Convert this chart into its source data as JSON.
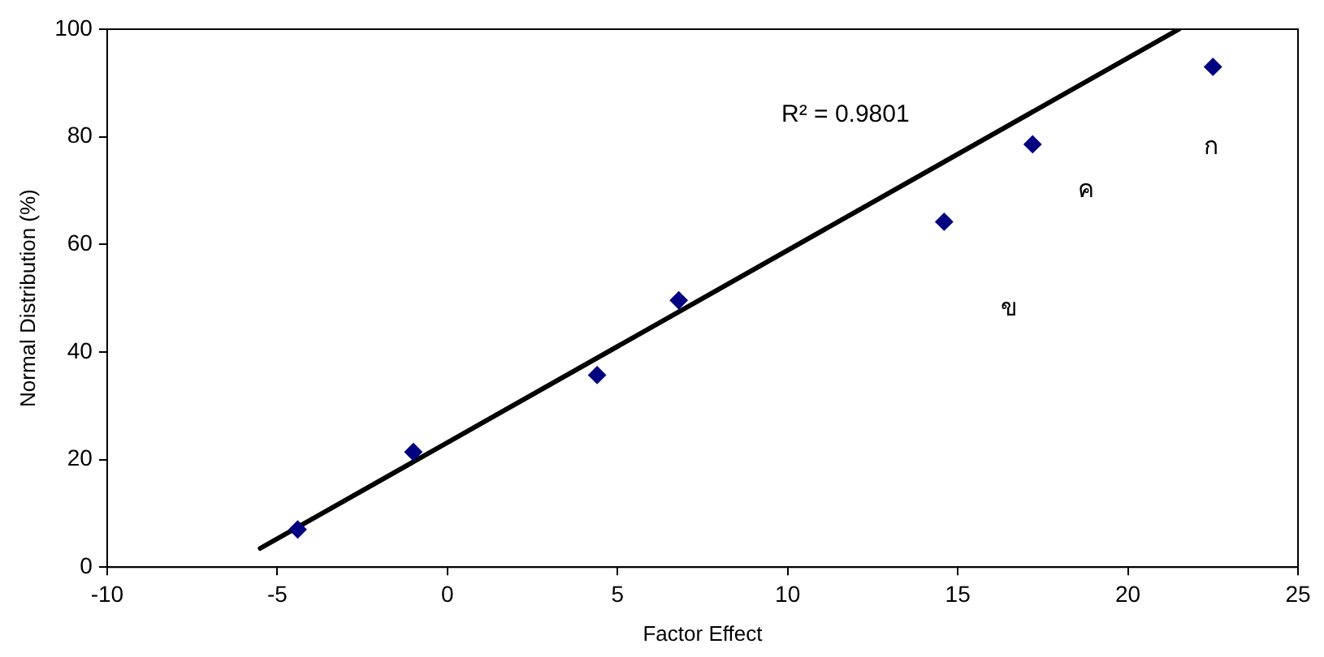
{
  "chart_data": {
    "type": "scatter",
    "xlabel": "Factor Effect",
    "ylabel": "Normal Distribution (%)",
    "xlim": [
      -10,
      25
    ],
    "xticks": [
      -10,
      -5,
      0,
      5,
      10,
      15,
      20,
      25
    ],
    "ylim": [
      0,
      100
    ],
    "yticks": [
      0,
      20,
      40,
      60,
      80,
      100
    ],
    "grid": false,
    "legend": false,
    "marker": "diamond",
    "series": [
      {
        "color": "#000080",
        "x": [
          -4.4,
          -1,
          4.4,
          6.8,
          14.6,
          17.2,
          22.5
        ],
        "values": [
          7,
          21.4,
          35.7,
          49.6,
          64.2,
          78.6,
          93
        ]
      },
      {
        "type": "line",
        "color": "#000000",
        "marker": "none",
        "x": [
          -5.5,
          21.5
        ],
        "values": [
          3.5,
          100
        ]
      }
    ],
    "annotations": [
      "R² = 0.9801",
      "ก",
      "ค",
      "ข"
    ]
  }
}
